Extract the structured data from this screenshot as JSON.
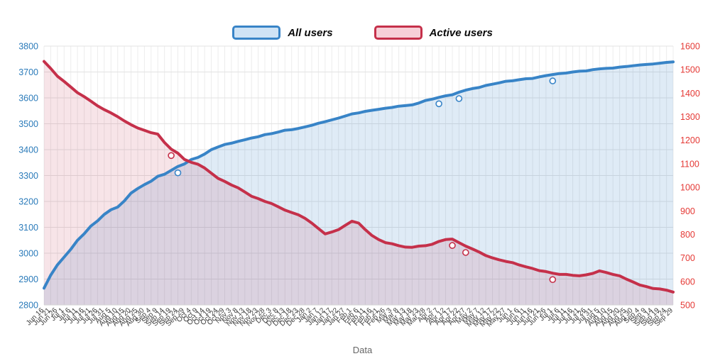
{
  "legend": {
    "items": [
      {
        "label": "All users",
        "border": "#3884c7",
        "fill": "#cfe3f5"
      },
      {
        "label": "Active users",
        "border": "#c5304a",
        "fill": "#f7d0d8"
      }
    ]
  },
  "chart_data": {
    "type": "line",
    "title": "",
    "xlabel": "Data",
    "grid": true,
    "legend_position": "top",
    "x": [
      "Jun 16",
      "Jun 21",
      "Jun 26",
      "Jul 1",
      "Jul 6",
      "Jul 11",
      "Jul 16",
      "Jul 21",
      "Jul 26",
      "Jul 31",
      "Aug 5",
      "Aug 10",
      "Aug 15",
      "Aug 20",
      "Aug 25",
      "Aug 30",
      "Sep 4",
      "Sep 9",
      "Sep 14",
      "Sep 19",
      "Sep 24",
      "Sep 29",
      "Oct 4",
      "Oct 9",
      "Oct 14",
      "Oct 19",
      "Oct 24",
      "Oct 29",
      "Nov 3",
      "Nov 8",
      "Nov 13",
      "Nov 18",
      "Nov 23",
      "Nov 28",
      "Dec 3",
      "Dec 8",
      "Dec 13",
      "Dec 18",
      "Dec 23",
      "Dec 28",
      "Jan 2",
      "Jan 7",
      "Jan 12",
      "Jan 17",
      "Jan 22",
      "Jan 27",
      "Feb 1",
      "Feb 6",
      "Feb 11",
      "Feb 16",
      "Feb 21",
      "Feb 26",
      "Mar 3",
      "Mar 8",
      "Mar 13",
      "Mar 18",
      "Mar 23",
      "Mar 28",
      "Apr 2",
      "Apr 7",
      "Apr 12",
      "Apr 17",
      "Apr 22",
      "Apr 27",
      "May 2",
      "May 7",
      "May 12",
      "May 17",
      "May 22",
      "May 27",
      "Jun 1",
      "Jun 6",
      "Jun 11",
      "Jun 16",
      "Jun 21",
      "Jun 26",
      "Jul 1",
      "Jul 6",
      "Jul 11",
      "Jul 16",
      "Jul 21",
      "Jul 26",
      "Jul 31",
      "Aug 5",
      "Aug 10",
      "Aug 15",
      "Aug 20",
      "Aug 25",
      "Aug 30",
      "Sep 4",
      "Sep 9",
      "Sep 14",
      "Sep 19",
      "Sep 24",
      "Sep 29"
    ],
    "series": [
      {
        "name": "All users",
        "axis": "left",
        "color": "#3884c7",
        "fill": "rgba(56,132,199,0.16)",
        "values": [
          2865,
          2915,
          2955,
          2985,
          3015,
          3050,
          3075,
          3105,
          3125,
          3150,
          3168,
          3178,
          3202,
          3232,
          3250,
          3265,
          3278,
          3297,
          3305,
          3320,
          3335,
          3345,
          3362,
          3370,
          3383,
          3400,
          3410,
          3420,
          3425,
          3432,
          3438,
          3445,
          3450,
          3458,
          3462,
          3468,
          3475,
          3477,
          3482,
          3488,
          3494,
          3502,
          3508,
          3515,
          3522,
          3530,
          3538,
          3542,
          3548,
          3552,
          3556,
          3560,
          3563,
          3568,
          3570,
          3573,
          3580,
          3590,
          3595,
          3602,
          3608,
          3612,
          3622,
          3630,
          3636,
          3640,
          3648,
          3653,
          3658,
          3664,
          3666,
          3670,
          3674,
          3675,
          3681,
          3686,
          3690,
          3694,
          3696,
          3700,
          3703,
          3704,
          3709,
          3712,
          3714,
          3715,
          3719,
          3721,
          3724,
          3727,
          3729,
          3731,
          3734,
          3737,
          3739
        ],
        "marker_indices": [
          20,
          59,
          62,
          76
        ]
      },
      {
        "name": "Active users",
        "axis": "right",
        "color": "#c5304a",
        "fill": "rgba(197,48,74,0.13)",
        "values": [
          1535,
          1505,
          1472,
          1450,
          1426,
          1402,
          1385,
          1366,
          1346,
          1330,
          1316,
          1300,
          1282,
          1266,
          1252,
          1242,
          1232,
          1226,
          1190,
          1162,
          1145,
          1118,
          1106,
          1098,
          1082,
          1060,
          1038,
          1025,
          1010,
          998,
          980,
          962,
          952,
          940,
          931,
          917,
          903,
          893,
          883,
          868,
          848,
          825,
          802,
          810,
          820,
          838,
          856,
          848,
          820,
          795,
          778,
          765,
          760,
          752,
          746,
          745,
          750,
          752,
          758,
          770,
          778,
          780,
          765,
          750,
          738,
          725,
          710,
          700,
          692,
          685,
          680,
          670,
          662,
          655,
          646,
          642,
          635,
          630,
          630,
          626,
          624,
          628,
          634,
          645,
          638,
          630,
          624,
          610,
          598,
          585,
          578,
          570,
          568,
          563,
          555
        ],
        "marker_indices": [
          19,
          61,
          63,
          76
        ]
      }
    ],
    "left_axis": {
      "min": 2800,
      "max": 3800,
      "ticks": [
        2800,
        2900,
        3000,
        3100,
        3200,
        3300,
        3400,
        3500,
        3600,
        3700,
        3800
      ],
      "color": "#2b7bba"
    },
    "right_axis": {
      "min": 500,
      "max": 1600,
      "ticks": [
        500,
        600,
        700,
        800,
        900,
        1000,
        1100,
        1200,
        1300,
        1400,
        1500,
        1600
      ],
      "color": "#e53935"
    }
  }
}
